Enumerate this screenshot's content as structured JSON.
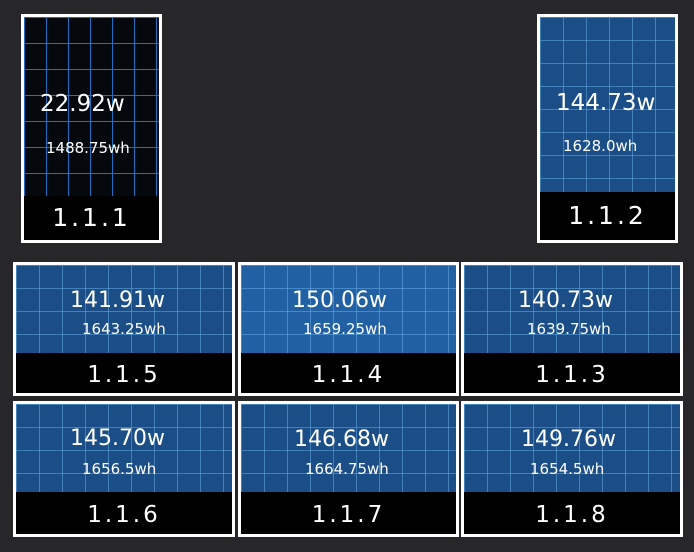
{
  "panels": [
    {
      "id": "1.1.1",
      "power": "22.92w",
      "energy": "1488.75wh"
    },
    {
      "id": "1.1.2",
      "power": "144.73w",
      "energy": "1628.0wh"
    },
    {
      "id": "1.1.5",
      "power": "141.91w",
      "energy": "1643.25wh"
    },
    {
      "id": "1.1.4",
      "power": "150.06w",
      "energy": "1659.25wh"
    },
    {
      "id": "1.1.3",
      "power": "140.73w",
      "energy": "1639.75wh"
    },
    {
      "id": "1.1.6",
      "power": "145.70w",
      "energy": "1656.5wh"
    },
    {
      "id": "1.1.7",
      "power": "146.68w",
      "energy": "1664.75wh"
    },
    {
      "id": "1.1.8",
      "power": "149.76w",
      "energy": "1654.5wh"
    }
  ],
  "colors": {
    "background": "#27272a",
    "panel_blue": "#1b4d86",
    "panel_dark": "#05080c",
    "grid_line": "#1f6fbf",
    "border": "#ffffff"
  }
}
